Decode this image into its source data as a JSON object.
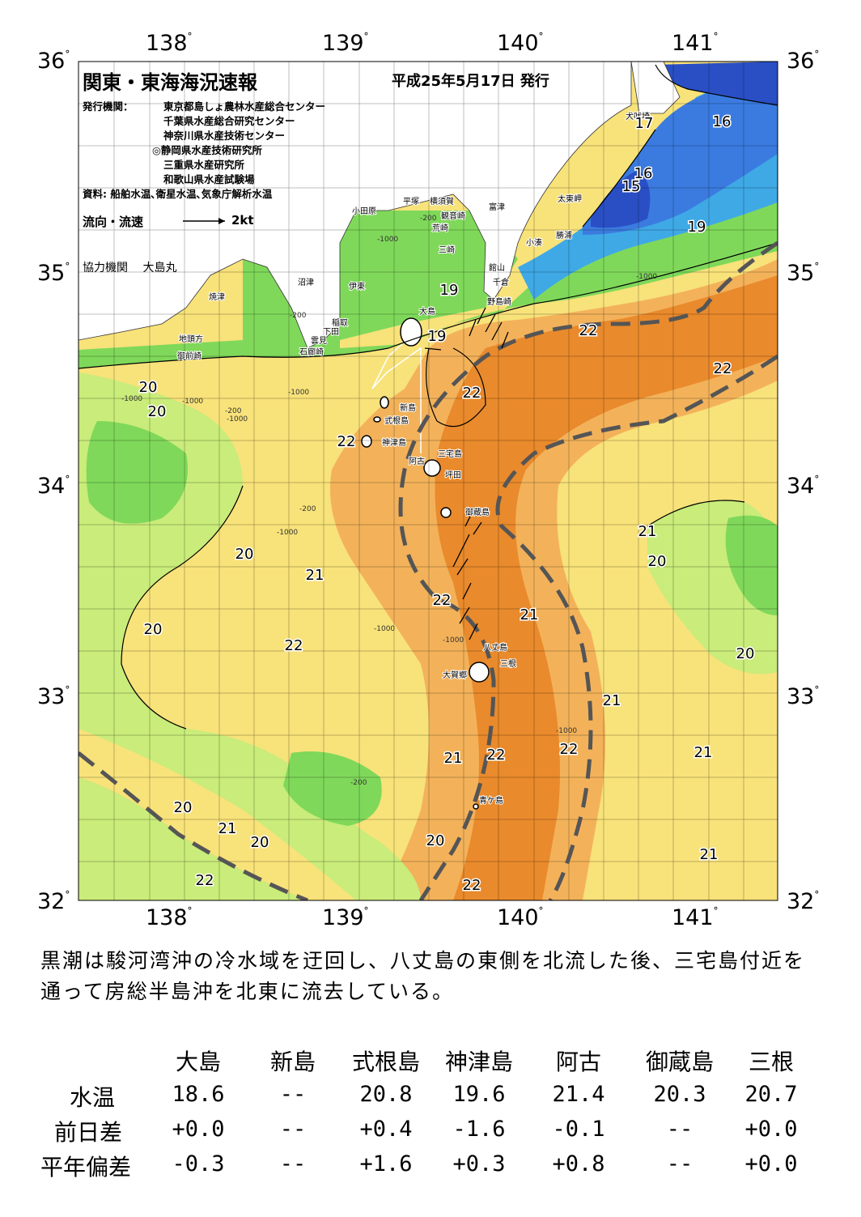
{
  "header": {
    "title": "関東・東海海況速報",
    "issue_date": "平成25年5月17日 発行",
    "issuer_label": "発行機関：",
    "issuers": [
      "東京都島しょ農林水産総合センター",
      "千葉県水産総合研究センター",
      "神奈川県水産技術センター",
      "◎静岡県水産技術研究所",
      "三重県水産研究所",
      "和歌山県水産試験場"
    ],
    "sources": "資料: 船舶水温､衛星水温､気象庁解析水温",
    "flow_label": "流向・流速",
    "flow_scale": "2kt",
    "cooperator": "協力機関　 大島丸"
  },
  "axes": {
    "lon_labels": [
      "138°",
      "139°",
      "140°",
      "141°"
    ],
    "lat_labels": [
      "36°",
      "35°",
      "34°",
      "33°",
      "32°"
    ]
  },
  "map": {
    "colors": {
      "c15": "#2a4fc4",
      "c16": "#3b7be0",
      "c17": "#3fa9e6",
      "c19": "#7fd85a",
      "c20": "#c9ec7a",
      "c21": "#f8e27a",
      "c22": "#f3b25a",
      "c23": "#e98a2c",
      "land": "#ffffff",
      "kuroshio_axis": "#555555"
    },
    "temp_labels": [
      "20",
      "20",
      "22",
      "22",
      "19",
      "19",
      "22",
      "22",
      "21",
      "20",
      "20",
      "22",
      "20",
      "22",
      "21",
      "20",
      "21",
      "22",
      "22",
      "21",
      "21",
      "20",
      "21",
      "20",
      "22",
      "22",
      "21",
      "20",
      "19",
      "17",
      "16",
      "16",
      "15",
      "21"
    ],
    "places": [
      "小田原",
      "平塚",
      "横須賀",
      "観音崎",
      "荒崎",
      "三崎",
      "富津",
      "小湊",
      "勝浦",
      "太東岬",
      "犬吠埼",
      "館山",
      "千倉",
      "野島崎",
      "大島",
      "稲取",
      "下田",
      "雲見",
      "石廊崎",
      "伊東",
      "沼津",
      "焼津",
      "地頭方",
      "御前崎",
      "新島",
      "式根島",
      "神津島",
      "三宅島",
      "坪田",
      "阿古",
      "御蔵島",
      "八丈島",
      "三根",
      "大賀郷",
      "青ケ島"
    ],
    "depth_labels": [
      "-200",
      "-1000",
      "-200",
      "-1000",
      "-1000",
      "-200",
      "-1000",
      "-1000",
      "-200",
      "-1000",
      "-1000",
      "-1000",
      "-1000",
      "-200",
      "-1000"
    ]
  },
  "note": "黒潮は駿河湾沖の冷水域を迂回し、八丈島の東側を北流した後、三宅島付近を通って房総半島沖を北東に流去している。",
  "table": {
    "columns": [
      "大島",
      "新島",
      "式根島",
      "神津島",
      "阿古",
      "御蔵島",
      "三根"
    ],
    "rows": [
      {
        "label": "水温",
        "values": [
          "18.6",
          "--",
          "20.8",
          "19.6",
          "21.4",
          "20.3",
          "20.7"
        ]
      },
      {
        "label": "前日差",
        "values": [
          "+0.0",
          "--",
          "+0.4",
          "-1.6",
          "-0.1",
          "--",
          "+0.0"
        ]
      },
      {
        "label": "平年偏差",
        "values": [
          "-0.3",
          "--",
          "+1.6",
          "+0.3",
          "+0.8",
          "--",
          "+0.0"
        ]
      }
    ]
  }
}
